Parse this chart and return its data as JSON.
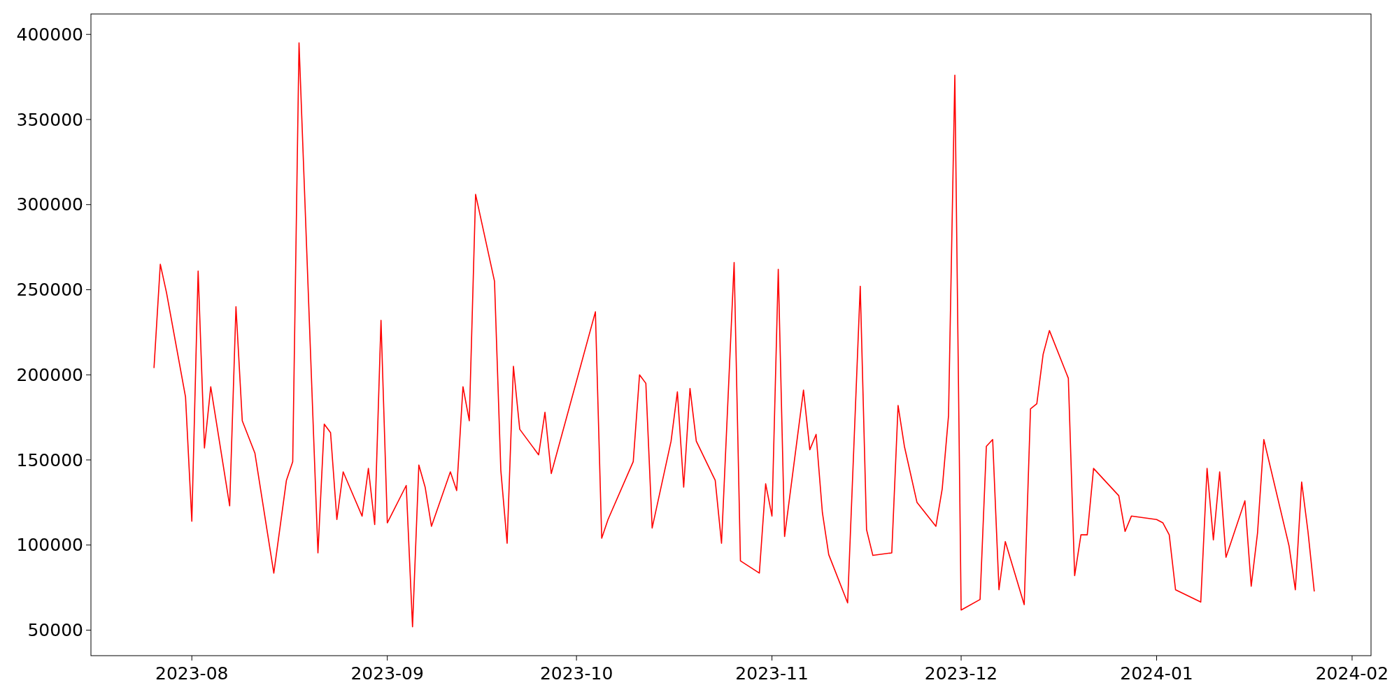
{
  "chart_data": {
    "type": "line",
    "color": "#ff0000",
    "line_style": "solid",
    "marker": "none",
    "grid": false,
    "x": [
      "2023-07-26",
      "2023-07-27",
      "2023-07-28",
      "2023-07-31",
      "2023-08-01",
      "2023-08-02",
      "2023-08-03",
      "2023-08-04",
      "2023-08-07",
      "2023-08-08",
      "2023-08-09",
      "2023-08-11",
      "2023-08-14",
      "2023-08-16",
      "2023-08-17",
      "2023-08-18",
      "2023-08-21",
      "2023-08-22",
      "2023-08-23",
      "2023-08-24",
      "2023-08-25",
      "2023-08-28",
      "2023-08-29",
      "2023-08-30",
      "2023-08-31",
      "2023-09-01",
      "2023-09-04",
      "2023-09-05",
      "2023-09-06",
      "2023-09-07",
      "2023-09-08",
      "2023-09-11",
      "2023-09-12",
      "2023-09-13",
      "2023-09-14",
      "2023-09-15",
      "2023-09-18",
      "2023-09-19",
      "2023-09-20",
      "2023-09-21",
      "2023-09-22",
      "2023-09-25",
      "2023-09-26",
      "2023-09-27",
      "2023-10-04",
      "2023-10-05",
      "2023-10-06",
      "2023-10-10",
      "2023-10-11",
      "2023-10-12",
      "2023-10-13",
      "2023-10-16",
      "2023-10-17",
      "2023-10-18",
      "2023-10-19",
      "2023-10-20",
      "2023-10-23",
      "2023-10-24",
      "2023-10-26",
      "2023-10-27",
      "2023-10-30",
      "2023-10-31",
      "2023-11-01",
      "2023-11-02",
      "2023-11-03",
      "2023-11-06",
      "2023-11-07",
      "2023-11-08",
      "2023-11-09",
      "2023-11-10",
      "2023-11-13",
      "2023-11-15",
      "2023-11-16",
      "2023-11-17",
      "2023-11-20",
      "2023-11-21",
      "2023-11-22",
      "2023-11-24",
      "2023-11-27",
      "2023-11-28",
      "2023-11-29",
      "2023-11-30",
      "2023-12-01",
      "2023-12-04",
      "2023-12-05",
      "2023-12-06",
      "2023-12-07",
      "2023-12-08",
      "2023-12-11",
      "2023-12-12",
      "2023-12-13",
      "2023-12-14",
      "2023-12-15",
      "2023-12-18",
      "2023-12-19",
      "2023-12-20",
      "2023-12-21",
      "2023-12-22",
      "2023-12-26",
      "2023-12-27",
      "2023-12-28",
      "2024-01-01",
      "2024-01-02",
      "2024-01-03",
      "2024-01-04",
      "2024-01-08",
      "2024-01-09",
      "2024-01-10",
      "2024-01-11",
      "2024-01-12",
      "2024-01-15",
      "2024-01-16",
      "2024-01-17",
      "2024-01-18",
      "2024-01-22",
      "2024-01-23",
      "2024-01-24",
      "2024-01-25",
      "2024-01-26"
    ],
    "values": [
      204000,
      265000,
      248000,
      187000,
      114000,
      261000,
      157000,
      193000,
      123000,
      240000,
      173000,
      154000,
      83500,
      138000,
      149000,
      395000,
      95400,
      171000,
      166000,
      115000,
      143000,
      117000,
      145000,
      112000,
      232000,
      113000,
      135000,
      52000,
      147000,
      134000,
      111000,
      143000,
      132000,
      193000,
      173000,
      306000,
      255000,
      144000,
      101000,
      205000,
      168000,
      153000,
      178000,
      142000,
      237000,
      104000,
      115000,
      149000,
      200000,
      195000,
      110000,
      161000,
      190000,
      134000,
      192000,
      161000,
      138000,
      101000,
      266000,
      90700,
      83500,
      136000,
      117000,
      262000,
      105000,
      191000,
      156000,
      165000,
      119000,
      94400,
      66000,
      252000,
      109000,
      93900,
      95400,
      182000,
      158000,
      125000,
      111000,
      133000,
      176000,
      376000,
      61800,
      68000,
      158000,
      162000,
      73700,
      102000,
      65000,
      180000,
      183000,
      212000,
      226000,
      198000,
      82000,
      106000,
      106000,
      145000,
      129000,
      108000,
      117000,
      115000,
      113000,
      106000,
      73700,
      66500,
      145000,
      103000,
      143000,
      92800,
      126000,
      75800,
      107000,
      162000,
      99500,
      73700,
      137000,
      108000,
      72700
    ],
    "xlim": [
      "2023-07-16",
      "2024-02-04"
    ],
    "xticks": [
      {
        "value": "2023-08-01",
        "label": "2023-08"
      },
      {
        "value": "2023-09-01",
        "label": "2023-09"
      },
      {
        "value": "2023-10-01",
        "label": "2023-10"
      },
      {
        "value": "2023-11-01",
        "label": "2023-11"
      },
      {
        "value": "2023-12-01",
        "label": "2023-12"
      },
      {
        "value": "2024-01-01",
        "label": "2024-01"
      },
      {
        "value": "2024-02-01",
        "label": "2024-02"
      }
    ],
    "ylim": [
      35000,
      412000
    ],
    "yticks": [
      50000,
      100000,
      150000,
      200000,
      250000,
      300000,
      350000,
      400000
    ]
  }
}
